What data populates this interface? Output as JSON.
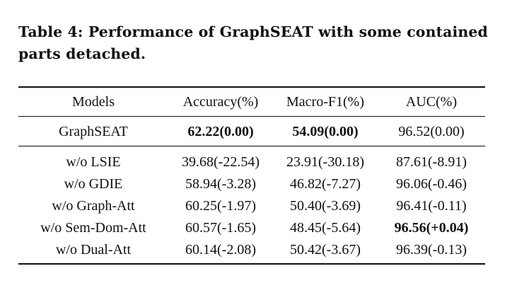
{
  "caption": "Table 4: Performance of GraphSEAT with some contained parts detached.",
  "table": {
    "headers": [
      "Models",
      "Accuracy(%)",
      "Macro-F1(%)",
      "AUC(%)"
    ],
    "rows": [
      [
        "GraphSEAT",
        "62.22(0.00)",
        "54.09(0.00)",
        "96.52(0.00)"
      ],
      [
        "w/o LSIE",
        "39.68(-22.54)",
        "23.91(-30.18)",
        "87.61(-8.91)"
      ],
      [
        "w/o GDIE",
        "58.94(-3.28)",
        "46.82(-7.27)",
        "96.06(-0.46)"
      ],
      [
        "w/o Graph-Att",
        "60.25(-1.97)",
        "50.40(-3.69)",
        "96.41(-0.11)"
      ],
      [
        "w/o Sem-Dom-Att",
        "60.57(-1.65)",
        "48.45(-5.64)",
        "96.56(+0.04)"
      ],
      [
        "w/o Dual-Att",
        "60.14(-2.08)",
        "50.42(-3.67)",
        "96.39(-0.13)"
      ]
    ],
    "bold_cells": [
      [
        0,
        1
      ],
      [
        0,
        2
      ],
      [
        4,
        3
      ]
    ]
  }
}
